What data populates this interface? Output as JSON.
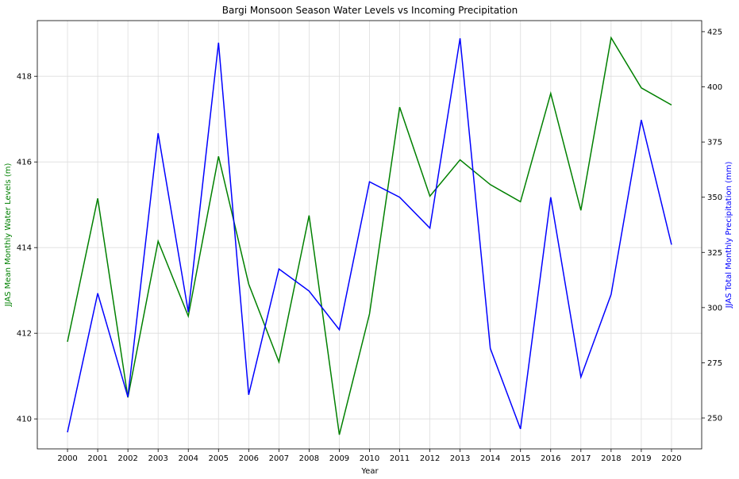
{
  "chart_data": {
    "type": "line",
    "title": "Bargi Monsoon Season Water Levels vs Incoming Precipitation",
    "xlabel": "Year",
    "ylabel_left": "JJAS Mean Monthly Water Levels (m)",
    "ylabel_right": "JJAS Total Monthly Precipitation (mm)",
    "x": [
      2000,
      2001,
      2002,
      2003,
      2004,
      2005,
      2006,
      2007,
      2008,
      2009,
      2010,
      2011,
      2012,
      2013,
      2014,
      2015,
      2016,
      2017,
      2018,
      2019,
      2020
    ],
    "x_ticks": [
      "2000",
      "2001",
      "2002",
      "2003",
      "2004",
      "2005",
      "2006",
      "2007",
      "2008",
      "2009",
      "2010",
      "2011",
      "2012",
      "2013",
      "2014",
      "2015",
      "2016",
      "2017",
      "2018",
      "2019",
      "2020"
    ],
    "ylim_left": [
      409.3,
      419.3
    ],
    "yticks_left": [
      410,
      412,
      414,
      416,
      418
    ],
    "ylim_right": [
      236,
      430
    ],
    "yticks_right": [
      250,
      275,
      300,
      325,
      350,
      375,
      400,
      425
    ],
    "grid": true,
    "colors": {
      "left": "#008000",
      "right": "#0000ff",
      "grid": "#dddddd"
    },
    "series": [
      {
        "axis": "left",
        "color": "#008000",
        "values": [
          411.8,
          415.15,
          410.5,
          414.15,
          412.4,
          416.13,
          413.15,
          411.33,
          414.75,
          409.63,
          412.45,
          417.28,
          415.2,
          416.05,
          415.47,
          415.07,
          417.6,
          414.87,
          418.9,
          417.73,
          417.33
        ]
      },
      {
        "axis": "right",
        "color": "#0000ff",
        "values": [
          243.5,
          306.5,
          259.5,
          379,
          298,
          420,
          260.5,
          317.5,
          307.5,
          290,
          357,
          350,
          336,
          422,
          281.5,
          245,
          350,
          268.5,
          306,
          385,
          328.5
        ]
      }
    ]
  }
}
